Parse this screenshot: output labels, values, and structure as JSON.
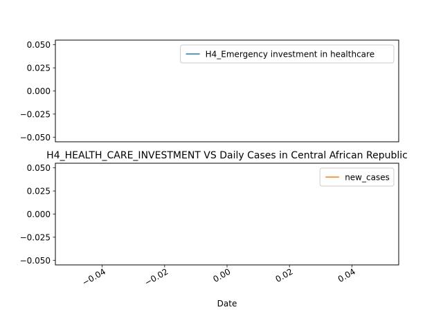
{
  "chart_data": [
    {
      "type": "line",
      "title": "",
      "xlabel": "",
      "ylabel": "",
      "ylim": [
        -0.055,
        0.055
      ],
      "xlim": [
        -0.055,
        0.055
      ],
      "yticks": [
        "0.050",
        "0.025",
        "0.000",
        "−0.025",
        "−0.050"
      ],
      "show_xticks": false,
      "legend_position": "upper right",
      "grid": false,
      "series": [
        {
          "name": "H4_Emergency investment in healthcare",
          "color": "#1f77b4",
          "x": [],
          "y": []
        }
      ]
    },
    {
      "type": "line",
      "title": "H4_HEALTH_CARE_INVESTMENT VS Daily Cases in Central African Republic",
      "xlabel": "Date",
      "ylabel": "",
      "ylim": [
        -0.055,
        0.055
      ],
      "xlim": [
        -0.055,
        0.055
      ],
      "yticks": [
        "0.050",
        "0.025",
        "0.000",
        "−0.025",
        "−0.050"
      ],
      "xticks": [
        "−0.04",
        "−0.02",
        "0.00",
        "0.02",
        "0.04"
      ],
      "show_xticks": true,
      "legend_position": "upper right",
      "grid": false,
      "series": [
        {
          "name": "new_cases",
          "color": "#ff7f0e",
          "x": [],
          "y": []
        }
      ]
    }
  ]
}
